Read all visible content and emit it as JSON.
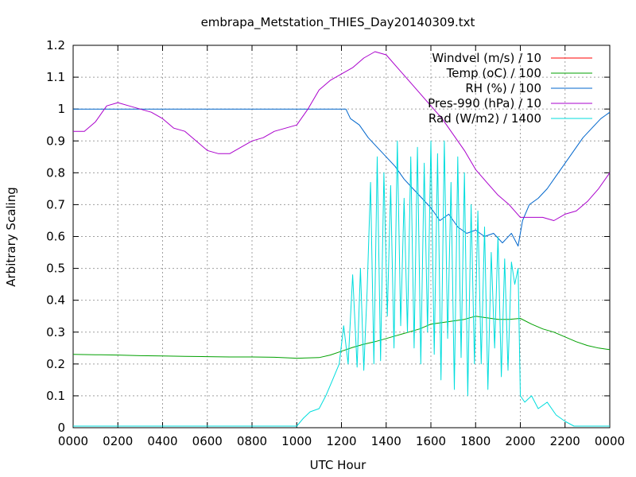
{
  "chart_data": {
    "type": "line",
    "title": "embrapa_Metstation_THIES_Day20140309.txt",
    "xlabel": "UTC Hour",
    "ylabel": "Arbitrary Scaling",
    "xlim": [
      0,
      24
    ],
    "ylim": [
      0,
      1.2
    ],
    "grid": true,
    "legend_position": "top-right",
    "x_tick_values": [
      0,
      2,
      4,
      6,
      8,
      10,
      12,
      14,
      16,
      18,
      20,
      22,
      24
    ],
    "x_tick_labels": [
      "0000",
      "0200",
      "0400",
      "0600",
      "0800",
      "1000",
      "1200",
      "1400",
      "1600",
      "1800",
      "2000",
      "2200",
      "0000"
    ],
    "y_tick_values": [
      0,
      0.1,
      0.2,
      0.3,
      0.4,
      0.5,
      0.6,
      0.7,
      0.8,
      0.9,
      1,
      1.1,
      1.2
    ],
    "y_tick_labels": [
      "0",
      "0.1",
      "0.2",
      "0.3",
      "0.4",
      "0.5",
      "0.6",
      "0.7",
      "0.8",
      "0.9",
      "1",
      "1.1",
      "1.2"
    ],
    "series": [
      {
        "name": "Windvel (m/s) / 10",
        "color": "#ff0000",
        "x": [],
        "y": []
      },
      {
        "name": "Temp (oC) / 100",
        "color": "#00a000",
        "x": [
          0,
          1,
          2,
          3,
          4,
          5,
          6,
          7,
          8,
          9,
          10,
          11,
          11.5,
          12,
          12.5,
          13,
          13.5,
          14,
          14.5,
          15,
          15.5,
          16,
          16.5,
          17,
          17.5,
          18,
          18.5,
          19,
          19.5,
          20,
          20.5,
          21,
          21.5,
          22,
          22.5,
          23,
          23.5,
          24
        ],
        "y": [
          0.23,
          0.229,
          0.228,
          0.226,
          0.225,
          0.224,
          0.223,
          0.222,
          0.222,
          0.221,
          0.218,
          0.22,
          0.228,
          0.24,
          0.252,
          0.262,
          0.27,
          0.28,
          0.29,
          0.3,
          0.31,
          0.325,
          0.33,
          0.335,
          0.34,
          0.35,
          0.345,
          0.34,
          0.34,
          0.343,
          0.325,
          0.31,
          0.3,
          0.285,
          0.27,
          0.258,
          0.25,
          0.245
        ]
      },
      {
        "name": "RH (%) / 100",
        "color": "#0066cc",
        "x": [
          0,
          12.2,
          12.4,
          12.8,
          13.2,
          13.6,
          14,
          14.4,
          14.8,
          15.2,
          15.6,
          16,
          16.4,
          16.8,
          17.2,
          17.6,
          18,
          18.4,
          18.8,
          19.2,
          19.6,
          19.9,
          20.1,
          20.4,
          20.8,
          21.2,
          21.6,
          22,
          22.4,
          22.8,
          23.2,
          23.6,
          24
        ],
        "y": [
          1.0,
          1.0,
          0.97,
          0.95,
          0.91,
          0.88,
          0.85,
          0.82,
          0.78,
          0.75,
          0.72,
          0.69,
          0.65,
          0.67,
          0.63,
          0.61,
          0.62,
          0.6,
          0.61,
          0.58,
          0.61,
          0.57,
          0.65,
          0.7,
          0.72,
          0.75,
          0.79,
          0.83,
          0.87,
          0.91,
          0.94,
          0.97,
          0.99
        ]
      },
      {
        "name": "Pres-990 (hPa) / 10",
        "color": "#aa00cc",
        "x": [
          0,
          0.5,
          1,
          1.5,
          2,
          2.5,
          3,
          3.5,
          4,
          4.5,
          5,
          5.5,
          6,
          6.5,
          7,
          7.5,
          8,
          8.5,
          9,
          9.5,
          10,
          10.5,
          11,
          11.5,
          12,
          12.5,
          13,
          13.5,
          14,
          14.5,
          15,
          15.5,
          16,
          16.5,
          17,
          17.5,
          18,
          18.5,
          19,
          19.5,
          20,
          20.5,
          21,
          21.5,
          22,
          22.5,
          23,
          23.5,
          24
        ],
        "y": [
          0.93,
          0.93,
          0.96,
          1.01,
          1.02,
          1.01,
          1.0,
          0.99,
          0.97,
          0.94,
          0.93,
          0.9,
          0.87,
          0.86,
          0.86,
          0.88,
          0.9,
          0.91,
          0.93,
          0.94,
          0.95,
          1.0,
          1.06,
          1.09,
          1.11,
          1.13,
          1.16,
          1.18,
          1.17,
          1.13,
          1.09,
          1.05,
          1.01,
          0.97,
          0.92,
          0.87,
          0.81,
          0.77,
          0.73,
          0.7,
          0.66,
          0.66,
          0.66,
          0.65,
          0.67,
          0.68,
          0.71,
          0.75,
          0.8
        ]
      },
      {
        "name": "Rad (W/m2) / 1400",
        "color": "#00dddd",
        "x": [
          0,
          10,
          10.3,
          10.6,
          11,
          11.3,
          11.6,
          11.9,
          12.1,
          12.3,
          12.5,
          12.7,
          12.85,
          13.0,
          13.15,
          13.3,
          13.45,
          13.6,
          13.75,
          13.9,
          14.05,
          14.2,
          14.35,
          14.5,
          14.65,
          14.8,
          14.95,
          15.1,
          15.25,
          15.4,
          15.55,
          15.7,
          15.85,
          16.0,
          16.15,
          16.3,
          16.45,
          16.6,
          16.75,
          16.9,
          17.05,
          17.2,
          17.35,
          17.5,
          17.65,
          17.8,
          17.95,
          18.1,
          18.25,
          18.4,
          18.55,
          18.7,
          18.85,
          19.0,
          19.15,
          19.3,
          19.45,
          19.6,
          19.75,
          19.9,
          20.0,
          20.2,
          20.5,
          20.8,
          21.2,
          21.6,
          22.0,
          22.4,
          22.8,
          23.2,
          24
        ],
        "y": [
          0.005,
          0.005,
          0.03,
          0.05,
          0.06,
          0.1,
          0.15,
          0.2,
          0.32,
          0.2,
          0.48,
          0.19,
          0.5,
          0.18,
          0.43,
          0.77,
          0.2,
          0.85,
          0.21,
          0.8,
          0.35,
          0.76,
          0.25,
          0.9,
          0.32,
          0.72,
          0.3,
          0.85,
          0.25,
          0.88,
          0.2,
          0.83,
          0.3,
          0.9,
          0.23,
          0.86,
          0.15,
          0.9,
          0.28,
          0.77,
          0.12,
          0.85,
          0.22,
          0.8,
          0.1,
          0.7,
          0.2,
          0.68,
          0.2,
          0.63,
          0.12,
          0.55,
          0.25,
          0.6,
          0.16,
          0.53,
          0.18,
          0.52,
          0.45,
          0.5,
          0.1,
          0.08,
          0.1,
          0.06,
          0.08,
          0.04,
          0.02,
          0.005,
          0.005,
          0.005,
          0.005
        ]
      }
    ]
  }
}
